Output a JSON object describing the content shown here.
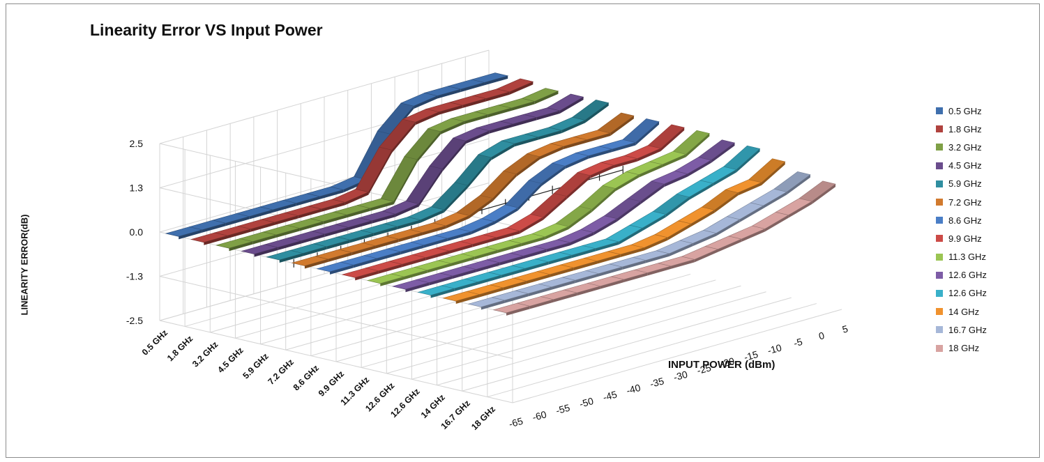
{
  "chart_data": {
    "type": "line",
    "title": "Linearity Error VS Input Power",
    "xlabel": "INPUT POWER (dBm)",
    "ylabel": "LINEARITY ERROR(dB)",
    "zlim": [
      -2.5,
      2.5
    ],
    "z_ticks": [
      "2.5",
      "1.3",
      "0.0",
      "-1.3",
      "-2.5"
    ],
    "x": [
      -65,
      -60,
      -55,
      -50,
      -45,
      -40,
      -35,
      -30,
      -25,
      -20,
      -15,
      -10,
      -5,
      0,
      5
    ],
    "x_ticks": [
      "-65",
      "-60",
      "-55",
      "-50",
      "-45",
      "-40",
      "-35",
      "-30",
      "-25",
      "-20",
      "-15",
      "-10",
      "-5",
      "0",
      "5"
    ],
    "categories": [
      "0.5 GHz",
      "1.8 GHz",
      "3.2 GHz",
      "4.5 GHz",
      "5.9 GHz",
      "7.2 GHz",
      "8.6 GHz",
      "9.9 GHz",
      "11.3 GHz",
      "12.6 GHz",
      "12.6 GHz",
      "14 GHz",
      "16.7 GHz",
      "18 GHz"
    ],
    "grid": true,
    "legend": "right",
    "series": [
      {
        "name": "0.5 GHz",
        "color": "#3f6fad",
        "values": [
          0.0,
          0.0,
          0.0,
          0.0,
          0.0,
          0.0,
          0.0,
          0.0,
          0.1,
          1.2,
          1.8,
          1.9,
          1.9,
          1.9,
          1.9
        ]
      },
      {
        "name": "1.8 GHz",
        "color": "#b0423e",
        "values": [
          0.0,
          0.0,
          0.0,
          0.0,
          0.0,
          0.0,
          0.0,
          0.1,
          1.1,
          1.7,
          1.8,
          1.8,
          1.8,
          1.8,
          1.9
        ]
      },
      {
        "name": "3.2 GHz",
        "color": "#7fa046",
        "values": [
          0.0,
          0.0,
          0.0,
          0.0,
          0.0,
          0.0,
          0.0,
          0.0,
          1.0,
          1.6,
          1.7,
          1.7,
          1.7,
          1.7,
          1.8
        ]
      },
      {
        "name": "4.5 GHz",
        "color": "#6a4c8c",
        "values": [
          0.0,
          0.0,
          0.0,
          0.0,
          0.0,
          0.0,
          0.0,
          0.1,
          0.9,
          1.5,
          1.6,
          1.6,
          1.6,
          1.6,
          1.8
        ]
      },
      {
        "name": "5.9 GHz",
        "color": "#2f8ea0",
        "values": [
          0.0,
          0.0,
          0.0,
          0.0,
          0.0,
          0.0,
          0.0,
          0.1,
          0.6,
          1.2,
          1.4,
          1.4,
          1.4,
          1.5,
          1.8
        ]
      },
      {
        "name": "7.2 GHz",
        "color": "#d17a2e",
        "values": [
          0.0,
          0.0,
          0.0,
          0.0,
          0.0,
          0.0,
          0.0,
          0.1,
          0.4,
          0.9,
          1.2,
          1.3,
          1.3,
          1.3,
          1.6
        ]
      },
      {
        "name": "8.6 GHz",
        "color": "#4a7ec6",
        "values": [
          0.0,
          0.0,
          0.0,
          0.0,
          0.0,
          0.0,
          0.0,
          0.1,
          0.3,
          0.8,
          1.1,
          1.2,
          1.2,
          1.2,
          1.6
        ]
      },
      {
        "name": "9.9 GHz",
        "color": "#cc4b47",
        "values": [
          0.0,
          0.0,
          0.0,
          0.0,
          0.0,
          0.0,
          0.0,
          0.0,
          0.2,
          0.6,
          1.0,
          1.1,
          1.1,
          1.2,
          1.6
        ]
      },
      {
        "name": "11.3 GHz",
        "color": "#9bc553",
        "values": [
          0.0,
          0.0,
          0.0,
          0.0,
          0.0,
          0.0,
          0.0,
          0.0,
          0.1,
          0.4,
          0.8,
          1.0,
          1.1,
          1.2,
          1.6
        ]
      },
      {
        "name": "12.6 GHz",
        "color": "#7d5ca6",
        "values": [
          0.0,
          0.0,
          0.0,
          0.0,
          0.0,
          0.0,
          0.0,
          0.0,
          0.1,
          0.3,
          0.6,
          0.9,
          1.0,
          1.2,
          1.5
        ]
      },
      {
        "name": "12.6 GHz",
        "color": "#39b0c9",
        "values": [
          0.0,
          0.0,
          0.0,
          0.0,
          0.0,
          0.0,
          0.0,
          0.0,
          0.0,
          0.2,
          0.4,
          0.7,
          0.9,
          1.1,
          1.5
        ]
      },
      {
        "name": "14 GHz",
        "color": "#f0922e",
        "values": [
          0.0,
          0.0,
          0.0,
          0.0,
          0.0,
          0.0,
          0.0,
          0.0,
          0.0,
          0.1,
          0.3,
          0.5,
          0.8,
          0.9,
          1.3
        ]
      },
      {
        "name": "16.7 GHz",
        "color": "#a6b7d8",
        "values": [
          0.0,
          0.0,
          0.0,
          0.0,
          0.0,
          0.0,
          0.0,
          0.0,
          0.0,
          0.1,
          0.2,
          0.4,
          0.6,
          0.8,
          1.1
        ]
      },
      {
        "name": "18 GHz",
        "color": "#d8a3a1",
        "values": [
          0.0,
          0.0,
          0.0,
          0.0,
          0.0,
          0.0,
          0.0,
          0.0,
          0.0,
          0.1,
          0.2,
          0.3,
          0.5,
          0.7,
          1.0
        ]
      }
    ]
  }
}
